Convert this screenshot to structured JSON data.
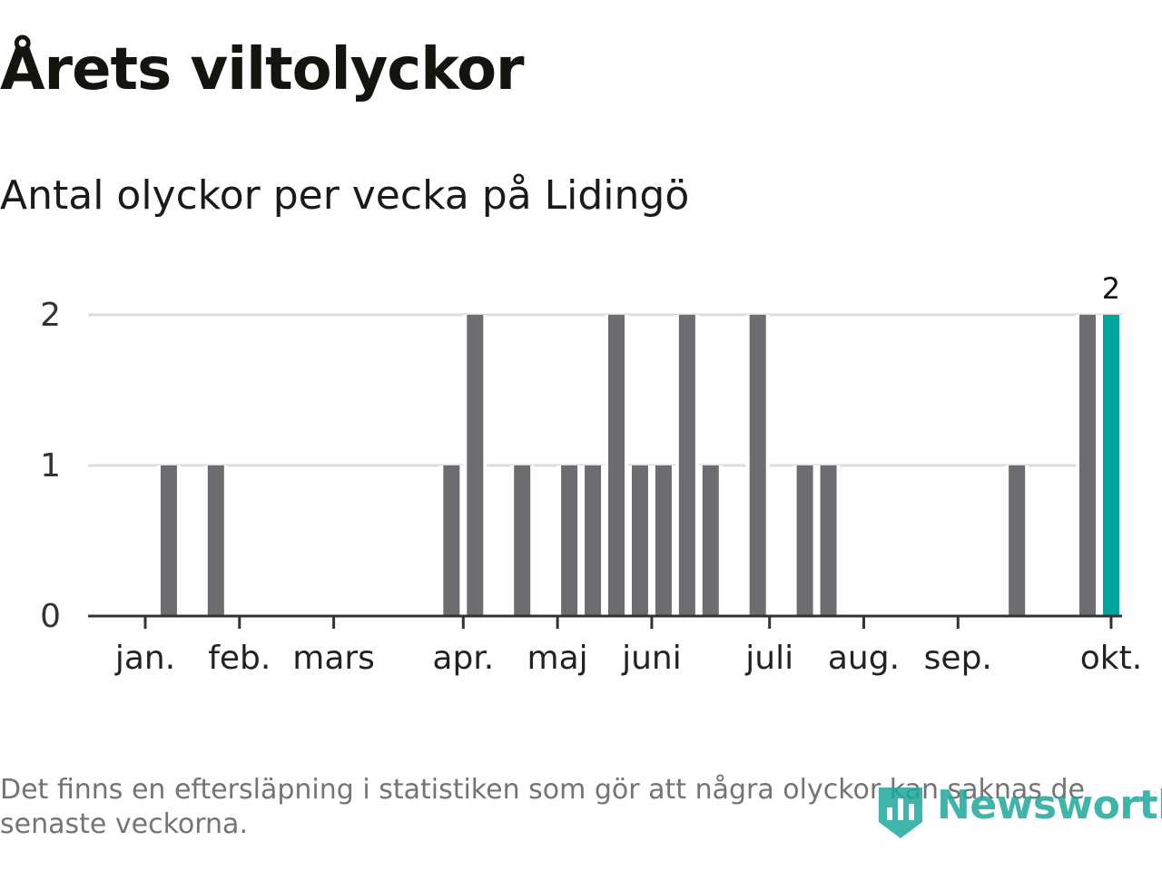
{
  "header": {
    "title": "Årets viltolyckor",
    "subtitle": "Antal olyckor per vecka på Lidingö"
  },
  "footnote": "Det finns en eftersläpning i statistiken som gör att några olyckor kan saknas de senaste veckorna.",
  "brand": {
    "name": "Newsworthy",
    "logo_icon": "bar-chart-shield-icon"
  },
  "colors": {
    "bar": "#6d6c70",
    "highlight": "#00a69c",
    "grid": "#dddddd",
    "axis": "#333333",
    "brand": "#1ea89d"
  },
  "chart_data": {
    "type": "bar",
    "title": "Årets viltolyckor",
    "subtitle": "Antal olyckor per vecka på Lidingö",
    "xlabel": "",
    "ylabel": "",
    "ylim": [
      0,
      2
    ],
    "yticks": [
      "0",
      "1",
      "2"
    ],
    "grid": true,
    "x_unit": "week",
    "weeks": [
      1,
      2,
      3,
      4,
      5,
      6,
      7,
      8,
      9,
      10,
      11,
      12,
      13,
      14,
      15,
      16,
      17,
      18,
      19,
      20,
      21,
      22,
      23,
      24,
      25,
      26,
      27,
      28,
      29,
      30,
      31,
      32,
      33,
      34,
      35,
      36,
      37,
      38,
      39,
      40,
      41,
      42
    ],
    "values": [
      0,
      1,
      0,
      1,
      0,
      0,
      0,
      0,
      0,
      0,
      0,
      0,
      0,
      1,
      2,
      0,
      1,
      0,
      1,
      1,
      2,
      1,
      1,
      2,
      1,
      0,
      2,
      0,
      1,
      1,
      0,
      0,
      0,
      0,
      0,
      0,
      0,
      1,
      0,
      0,
      2,
      2
    ],
    "highlight_last": true,
    "last_value_label": "2",
    "month_labels": [
      "jan.",
      "feb.",
      "mars",
      "apr.",
      "maj",
      "juni",
      "juli",
      "aug.",
      "sep.",
      "okt."
    ],
    "month_tick_weeks": [
      1.0,
      5.0,
      9.0,
      14.5,
      18.5,
      22.5,
      27.5,
      31.5,
      35.5,
      42.0
    ]
  }
}
